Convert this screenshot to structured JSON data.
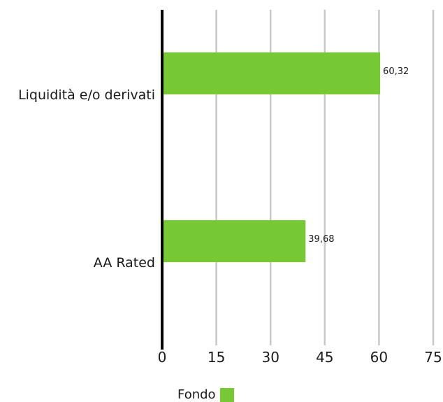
{
  "chart_data": {
    "type": "bar",
    "orientation": "horizontal",
    "categories": [
      "Liquidità e/o derivati",
      "AA Rated"
    ],
    "series": [
      {
        "name": "Fondo",
        "values": [
          60.32,
          39.68
        ],
        "labels": [
          "60,32",
          "39,68"
        ],
        "color": "#76c935"
      }
    ],
    "xlim": [
      0,
      75
    ],
    "xticks": [
      0,
      15,
      30,
      45,
      60,
      75
    ],
    "xtick_labels": [
      "0",
      "15",
      "30",
      "45",
      "60",
      "75"
    ],
    "grid": "vertical",
    "legend_position": "bottom"
  },
  "legend": {
    "label": "Fondo",
    "color": "#76c935"
  }
}
